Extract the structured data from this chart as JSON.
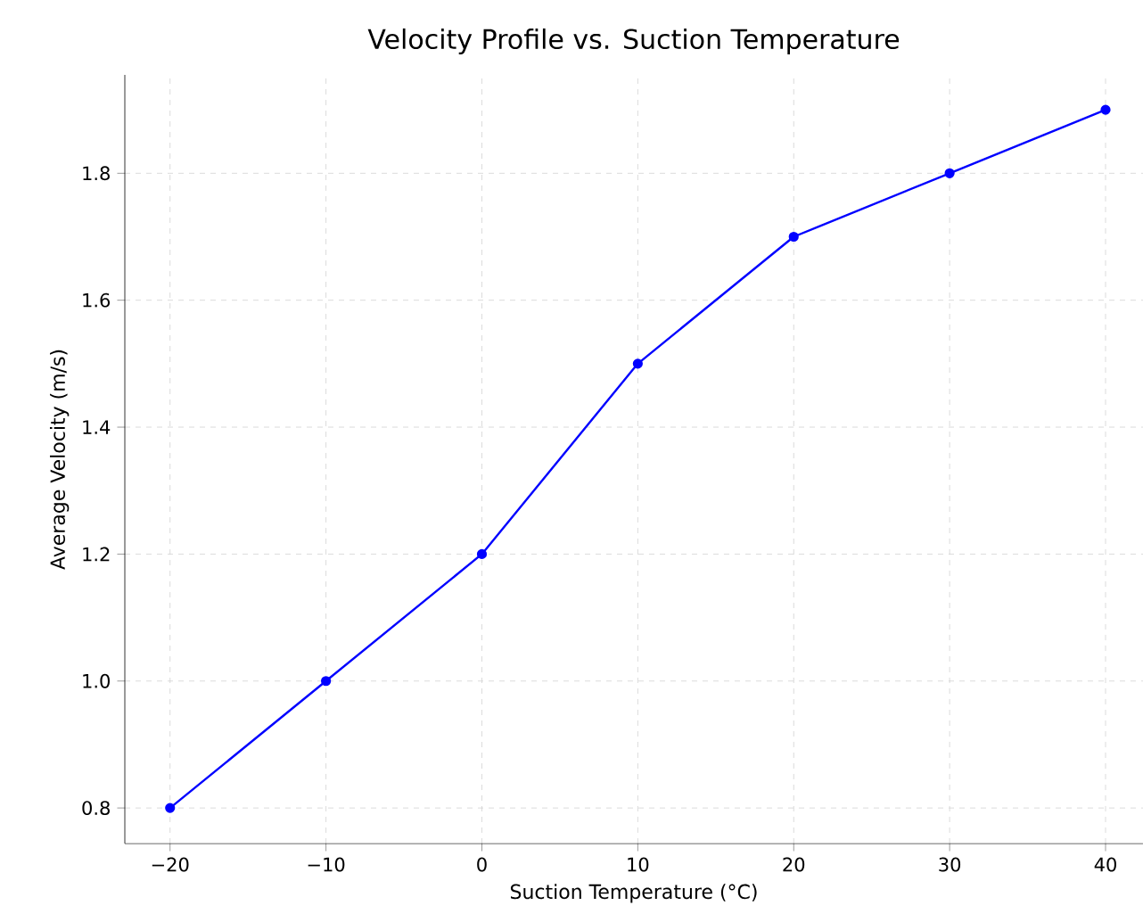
{
  "chart_data": {
    "type": "line",
    "title": "Velocity Profile vs. Suction Temperature",
    "xlabel": "Suction Temperature (°C)",
    "ylabel": "Average Velocity (m/s)",
    "x": [
      -20,
      -10,
      0,
      10,
      20,
      30,
      40
    ],
    "series": [
      {
        "color": "#0000ff",
        "values": [
          0.8,
          1.0,
          1.2,
          1.5,
          1.7,
          1.8,
          1.9
        ]
      }
    ],
    "xlim": [
      -22.9,
      42.4
    ],
    "ylim": [
      0.744,
      1.955
    ],
    "xticks": [
      {
        "value": -20,
        "label": "−20"
      },
      {
        "value": -10,
        "label": "−10"
      },
      0,
      10,
      20,
      30,
      40
    ],
    "yticks": [
      {
        "value": 0.8,
        "label": "0.8"
      },
      {
        "value": 1.0,
        "label": "1.0"
      },
      {
        "value": 1.2,
        "label": "1.2"
      },
      {
        "value": 1.4,
        "label": "1.4"
      },
      {
        "value": 1.6,
        "label": "1.6"
      },
      {
        "value": 1.8,
        "label": "1.8"
      }
    ],
    "grid": true,
    "marker": "circle",
    "line_style": "solid"
  }
}
